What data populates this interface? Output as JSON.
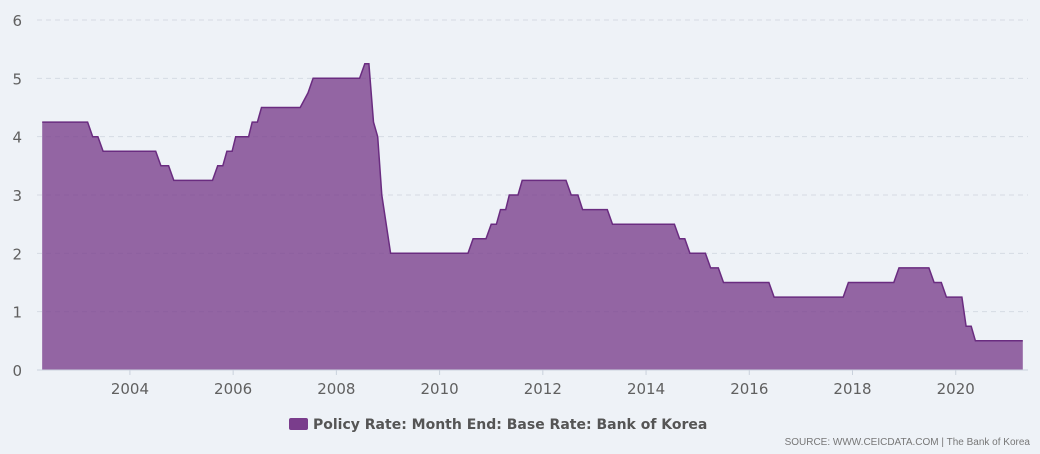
{
  "chart_data": {
    "type": "area",
    "title": "",
    "xlabel": "",
    "ylabel": "",
    "xlim": [
      2002.2,
      2021.4
    ],
    "ylim": [
      0,
      6
    ],
    "yticks": [
      0,
      1,
      2,
      3,
      4,
      5,
      6
    ],
    "xticks": [
      2004,
      2006,
      2008,
      2010,
      2012,
      2014,
      2016,
      2018,
      2020
    ],
    "grid": "horizontal-dashed",
    "legend_position": "bottom-center",
    "series": [
      {
        "name": "Policy Rate: Month End: Base Rate: Bank of Korea",
        "color": "#7a3d8c",
        "points": [
          [
            2002.3,
            4.25
          ],
          [
            2003.18,
            4.25
          ],
          [
            2003.28,
            4.0
          ],
          [
            2003.38,
            4.0
          ],
          [
            2003.48,
            3.75
          ],
          [
            2004.5,
            3.75
          ],
          [
            2004.6,
            3.5
          ],
          [
            2004.75,
            3.5
          ],
          [
            2004.85,
            3.25
          ],
          [
            2005.6,
            3.25
          ],
          [
            2005.7,
            3.5
          ],
          [
            2005.8,
            3.5
          ],
          [
            2005.88,
            3.75
          ],
          [
            2005.98,
            3.75
          ],
          [
            2006.05,
            4.0
          ],
          [
            2006.3,
            4.0
          ],
          [
            2006.37,
            4.25
          ],
          [
            2006.47,
            4.25
          ],
          [
            2006.55,
            4.5
          ],
          [
            2007.3,
            4.5
          ],
          [
            2007.45,
            4.75
          ],
          [
            2007.55,
            5.0
          ],
          [
            2008.45,
            5.0
          ],
          [
            2008.55,
            5.25
          ],
          [
            2008.63,
            5.25
          ],
          [
            2008.72,
            4.25
          ],
          [
            2008.8,
            4.0
          ],
          [
            2008.88,
            3.0
          ],
          [
            2009.05,
            2.0
          ],
          [
            2010.55,
            2.0
          ],
          [
            2010.65,
            2.25
          ],
          [
            2010.9,
            2.25
          ],
          [
            2011.0,
            2.5
          ],
          [
            2011.1,
            2.5
          ],
          [
            2011.18,
            2.75
          ],
          [
            2011.28,
            2.75
          ],
          [
            2011.35,
            3.0
          ],
          [
            2011.52,
            3.0
          ],
          [
            2011.6,
            3.25
          ],
          [
            2012.45,
            3.25
          ],
          [
            2012.55,
            3.0
          ],
          [
            2012.68,
            3.0
          ],
          [
            2012.77,
            2.75
          ],
          [
            2013.25,
            2.75
          ],
          [
            2013.35,
            2.5
          ],
          [
            2014.55,
            2.5
          ],
          [
            2014.65,
            2.25
          ],
          [
            2014.75,
            2.25
          ],
          [
            2014.85,
            2.0
          ],
          [
            2015.15,
            2.0
          ],
          [
            2015.25,
            1.75
          ],
          [
            2015.4,
            1.75
          ],
          [
            2015.5,
            1.5
          ],
          [
            2016.38,
            1.5
          ],
          [
            2016.48,
            1.25
          ],
          [
            2017.82,
            1.25
          ],
          [
            2017.92,
            1.5
          ],
          [
            2018.8,
            1.5
          ],
          [
            2018.9,
            1.75
          ],
          [
            2019.48,
            1.75
          ],
          [
            2019.58,
            1.5
          ],
          [
            2019.72,
            1.5
          ],
          [
            2019.82,
            1.25
          ],
          [
            2020.12,
            1.25
          ],
          [
            2020.2,
            0.75
          ],
          [
            2020.3,
            0.75
          ],
          [
            2020.38,
            0.5
          ],
          [
            2021.3,
            0.5
          ]
        ]
      }
    ]
  },
  "footer": {
    "source": "SOURCE: WWW.CEICDATA.COM | The Bank of Korea"
  }
}
